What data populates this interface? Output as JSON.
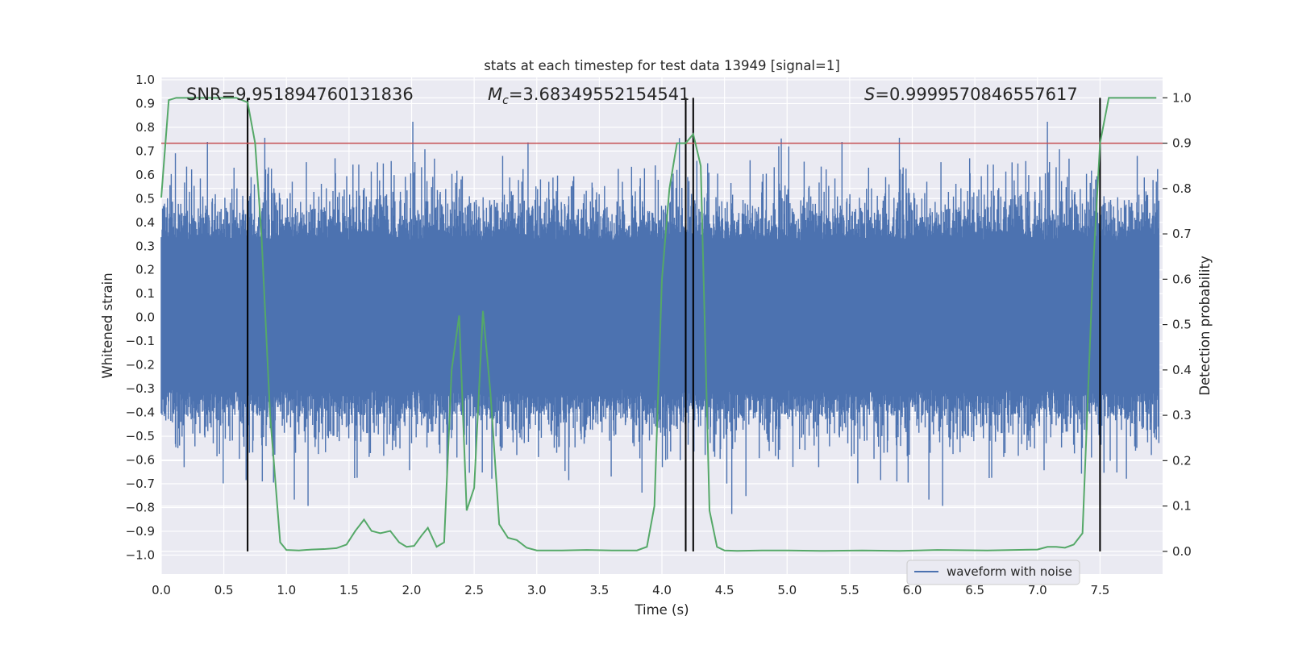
{
  "chart_data": {
    "type": "line",
    "title": "stats at each timestep for test data 13949 [signal=1]",
    "xlabel": "Time (s)",
    "ylabel": "Whitened strain",
    "y2label": "Detection probability",
    "xlim": [
      0.0,
      8.0
    ],
    "ylim": [
      -1.08,
      1.01
    ],
    "y2lim": [
      -0.05,
      1.045
    ],
    "xticks": [
      "0.0",
      "0.5",
      "1.0",
      "1.5",
      "2.0",
      "2.5",
      "3.0",
      "3.5",
      "4.0",
      "4.5",
      "5.0",
      "5.5",
      "6.0",
      "6.5",
      "7.0",
      "7.5"
    ],
    "yticks": [
      "1.0",
      "0.9",
      "0.8",
      "0.7",
      "0.6",
      "0.5",
      "0.4",
      "0.3",
      "0.2",
      "0.1",
      "0.0",
      "−0.1",
      "−0.2",
      "−0.3",
      "−0.4",
      "−0.5",
      "−0.6",
      "−0.7",
      "−0.8",
      "−0.9",
      "−1.0"
    ],
    "y2ticks": [
      "1.0",
      "0.9",
      "0.8",
      "0.7",
      "0.6",
      "0.5",
      "0.4",
      "0.3",
      "0.2",
      "0.1",
      "0.0"
    ],
    "annotations": {
      "snr": "SNR=9.951894760131836",
      "mc_symbol": "M",
      "mc_sub": "c",
      "mc_value": "=3.68349552154541",
      "s_symbol": "S",
      "s_value": "=0.9999570846557617"
    },
    "legend": [
      {
        "label": "waveform with noise",
        "color": "#4c72b0"
      }
    ],
    "threshold": {
      "value": 0.9,
      "axis": "y2",
      "color": "#c44e52"
    },
    "vertical_markers": [
      0.69,
      4.19,
      4.25,
      7.5
    ],
    "series": [
      {
        "name": "detection probability",
        "axis": "y2",
        "color": "#55a868",
        "x": [
          0.0,
          0.06,
          0.12,
          0.2,
          0.3,
          0.4,
          0.5,
          0.6,
          0.69,
          0.75,
          0.8,
          0.87,
          0.95,
          1.0,
          1.1,
          1.2,
          1.3,
          1.4,
          1.48,
          1.55,
          1.62,
          1.68,
          1.75,
          1.83,
          1.9,
          1.96,
          2.02,
          2.08,
          2.13,
          2.2,
          2.26,
          2.32,
          2.38,
          2.44,
          2.5,
          2.57,
          2.63,
          2.7,
          2.77,
          2.84,
          2.92,
          3.0,
          3.2,
          3.4,
          3.6,
          3.8,
          3.88,
          3.94,
          4.0,
          4.06,
          4.12,
          4.19,
          4.25,
          4.31,
          4.38,
          4.44,
          4.5,
          4.6,
          4.8,
          5.0,
          5.3,
          5.6,
          5.9,
          6.2,
          6.6,
          7.0,
          7.08,
          7.15,
          7.22,
          7.29,
          7.36,
          7.44,
          7.5,
          7.57,
          7.63,
          7.7,
          7.8,
          7.95
        ],
        "values": [
          0.78,
          0.995,
          1.0,
          1.0,
          1.0,
          1.0,
          1.0,
          1.0,
          0.99,
          0.9,
          0.7,
          0.3,
          0.02,
          0.003,
          0.002,
          0.004,
          0.005,
          0.007,
          0.015,
          0.045,
          0.07,
          0.045,
          0.04,
          0.045,
          0.02,
          0.01,
          0.012,
          0.035,
          0.052,
          0.01,
          0.02,
          0.4,
          0.52,
          0.09,
          0.14,
          0.53,
          0.35,
          0.06,
          0.03,
          0.025,
          0.008,
          0.002,
          0.002,
          0.003,
          0.002,
          0.002,
          0.01,
          0.1,
          0.6,
          0.8,
          0.9,
          0.9,
          0.92,
          0.85,
          0.09,
          0.01,
          0.002,
          0.001,
          0.002,
          0.002,
          0.001,
          0.002,
          0.001,
          0.003,
          0.002,
          0.004,
          0.01,
          0.01,
          0.008,
          0.015,
          0.04,
          0.6,
          0.9,
          1.0,
          1.0,
          1.0,
          1.0,
          1.0
        ]
      }
    ]
  }
}
